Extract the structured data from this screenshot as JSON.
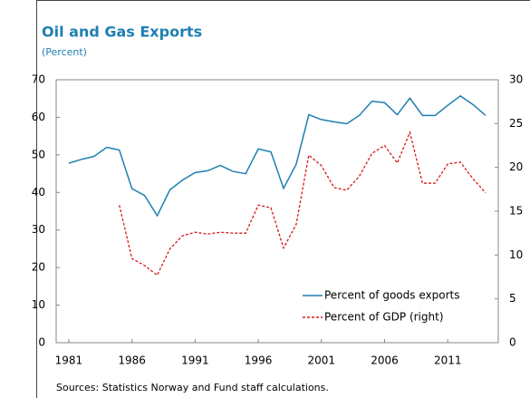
{
  "chart_data": {
    "type": "line",
    "title": "Oil and Gas Exports",
    "subtitle": "(Percent)",
    "source": "Sources: Statistics Norway and Fund staff calculations.",
    "x": [
      1981,
      1982,
      1983,
      1984,
      1985,
      1986,
      1987,
      1988,
      1989,
      1990,
      1991,
      1992,
      1993,
      1994,
      1995,
      1996,
      1997,
      1998,
      1999,
      2000,
      2001,
      2002,
      2003,
      2004,
      2005,
      2006,
      2007,
      2008,
      2009,
      2010,
      2011,
      2012,
      2013,
      2014
    ],
    "xlim": [
      1980,
      2015
    ],
    "xticks": [
      1981,
      1986,
      1991,
      1996,
      2001,
      2006,
      2011
    ],
    "ylim": [
      0,
      70
    ],
    "yticks": [
      0,
      10,
      20,
      30,
      40,
      50,
      60,
      70
    ],
    "y2lim": [
      0,
      30
    ],
    "y2ticks": [
      0,
      5,
      10,
      15,
      20,
      25,
      30
    ],
    "legend": "lower right",
    "series": [
      {
        "name": "Percent of goods exports",
        "color": "#1f7fb0",
        "dash": "solid",
        "values": [
          47.8,
          48.8,
          49.6,
          52,
          51.3,
          41,
          39.2,
          33.8,
          40.7,
          43.3,
          45.3,
          45.8,
          47.2,
          45.6,
          45,
          51.6,
          50.8,
          41.1,
          47.5,
          60.7,
          59.4,
          58.8,
          58.3,
          60.5,
          64.3,
          63.9,
          60.7,
          65.1,
          60.5,
          60.5,
          63.2,
          65.7,
          63.4,
          60.5
        ]
      },
      {
        "name": "Percent of GDP (right)",
        "color": "#d7191c",
        "dash": "dashed",
        "axis": "y2",
        "values": [
          null,
          null,
          null,
          null,
          15.7,
          9.6,
          8.8,
          7.7,
          10.7,
          12.2,
          12.6,
          12.4,
          12.6,
          12.5,
          12.5,
          15.7,
          15.4,
          10.8,
          13.5,
          21.4,
          20.2,
          17.7,
          17.4,
          19,
          21.6,
          22.5,
          20.5,
          24,
          18.2,
          18.2,
          20.4,
          20.6,
          18.7,
          17.1
        ]
      }
    ]
  }
}
